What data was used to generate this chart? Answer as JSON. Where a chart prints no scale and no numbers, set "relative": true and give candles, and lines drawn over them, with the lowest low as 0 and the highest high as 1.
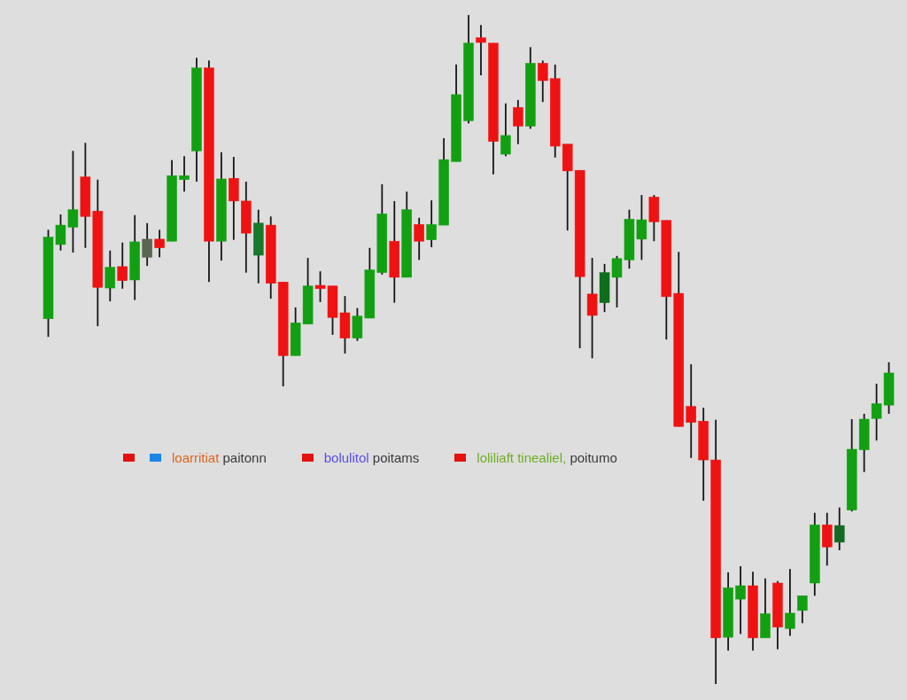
{
  "chart_data": {
    "type": "candlestick",
    "relative": true,
    "categories": [
      null,
      null,
      null,
      null,
      null,
      null,
      null,
      null,
      null,
      null,
      null,
      null,
      null,
      null,
      null,
      null,
      null,
      null,
      null,
      null,
      null,
      null,
      null,
      null,
      null,
      null,
      null,
      null,
      null,
      null,
      null,
      null,
      null,
      null,
      null,
      null,
      null,
      null,
      null,
      null,
      null,
      null,
      null,
      null,
      null,
      null,
      null,
      null,
      null,
      null,
      null,
      null,
      null,
      null,
      null,
      null,
      null,
      null,
      null,
      null,
      null,
      null,
      null,
      null,
      null,
      null,
      null,
      null,
      null
    ],
    "ohlc": [
      [
        0.546,
        0.679,
        0.519,
        0.668
      ],
      [
        0.657,
        0.702,
        0.648,
        0.686
      ],
      [
        0.683,
        0.797,
        0.645,
        0.709
      ],
      [
        0.758,
        0.809,
        0.652,
        0.699
      ],
      [
        0.707,
        0.754,
        0.535,
        0.593
      ],
      [
        0.592,
        0.648,
        0.572,
        0.623
      ],
      [
        0.624,
        0.66,
        0.591,
        0.603
      ],
      [
        0.604,
        0.701,
        0.574,
        0.661
      ],
      [
        0.638,
        0.689,
        0.625,
        0.665
      ],
      [
        0.665,
        0.679,
        0.638,
        0.652
      ],
      [
        0.662,
        0.783,
        0.662,
        0.76
      ],
      [
        0.754,
        0.789,
        0.736,
        0.76
      ],
      [
        0.797,
        0.936,
        0.751,
        0.921
      ],
      [
        0.921,
        0.932,
        0.601,
        0.662
      ],
      [
        0.662,
        0.795,
        0.633,
        0.755
      ],
      [
        0.756,
        0.788,
        0.664,
        0.722
      ],
      [
        0.722,
        0.751,
        0.615,
        0.674
      ],
      [
        0.641,
        0.709,
        0.599,
        0.689
      ],
      [
        0.686,
        0.699,
        0.576,
        0.599
      ],
      [
        0.601,
        0.601,
        0.445,
        0.491
      ],
      [
        0.491,
        0.563,
        0.491,
        0.54
      ],
      [
        0.538,
        0.637,
        0.538,
        0.595
      ],
      [
        0.596,
        0.617,
        0.571,
        0.591
      ],
      [
        0.595,
        0.595,
        0.522,
        0.548
      ],
      [
        0.555,
        0.58,
        0.494,
        0.517
      ],
      [
        0.517,
        0.562,
        0.513,
        0.55
      ],
      [
        0.547,
        0.652,
        0.547,
        0.619
      ],
      [
        0.615,
        0.747,
        0.612,
        0.703
      ],
      [
        0.662,
        0.722,
        0.57,
        0.608
      ],
      [
        0.608,
        0.736,
        0.608,
        0.709
      ],
      [
        0.687,
        0.697,
        0.634,
        0.662
      ],
      [
        0.664,
        0.723,
        0.653,
        0.687
      ],
      [
        0.686,
        0.816,
        0.686,
        0.784
      ],
      [
        0.781,
        0.926,
        0.781,
        0.881
      ],
      [
        0.842,
        1,
        0.838,
        0.958
      ],
      [
        0.966,
        0.985,
        0.91,
        0.959
      ],
      [
        0.958,
        0.958,
        0.762,
        0.811
      ],
      [
        0.792,
        0.868,
        0.789,
        0.82
      ],
      [
        0.862,
        0.873,
        0.807,
        0.834
      ],
      [
        0.834,
        0.952,
        0.83,
        0.928
      ],
      [
        0.928,
        0.932,
        0.87,
        0.902
      ],
      [
        0.905,
        0.926,
        0.787,
        0.804
      ],
      [
        0.807,
        0.807,
        0.678,
        0.767
      ],
      [
        0.768,
        0.768,
        0.502,
        0.609
      ],
      [
        0.583,
        0.637,
        0.487,
        0.551
      ],
      [
        0.57,
        0.628,
        0.556,
        0.615
      ],
      [
        0.608,
        0.64,
        0.563,
        0.636
      ],
      [
        0.634,
        0.709,
        0.621,
        0.695
      ],
      [
        0.665,
        0.731,
        0.634,
        0.694
      ],
      [
        0.728,
        0.731,
        0.662,
        0.691
      ],
      [
        0.693,
        0.693,
        0.515,
        0.579
      ],
      [
        0.584,
        0.646,
        0.385,
        0.385
      ],
      [
        0.415,
        0.478,
        0.338,
        0.391
      ],
      [
        0.393,
        0.413,
        0.274,
        0.335
      ],
      [
        0.335,
        0.395,
        0,
        0.069
      ],
      [
        0.07,
        0.167,
        0.05,
        0.144
      ],
      [
        0.127,
        0.176,
        0.075,
        0.147
      ],
      [
        0.147,
        0.168,
        0.05,
        0.069
      ],
      [
        0.069,
        0.158,
        0.069,
        0.105
      ],
      [
        0.151,
        0.154,
        0.052,
        0.085
      ],
      [
        0.083,
        0.172,
        0.072,
        0.106
      ],
      [
        0.11,
        0.132,
        0.091,
        0.132
      ],
      [
        0.151,
        0.256,
        0.132,
        0.238
      ],
      [
        0.238,
        0.256,
        0.177,
        0.205
      ],
      [
        0.212,
        0.264,
        0.2,
        0.237
      ],
      [
        0.26,
        0.396,
        0.258,
        0.351
      ],
      [
        0.35,
        0.404,
        0.317,
        0.396
      ],
      [
        0.397,
        0.449,
        0.364,
        0.419
      ],
      [
        0.417,
        0.481,
        0.404,
        0.465
      ]
    ],
    "colors": [
      "#12a012",
      "#12a012",
      "#12a012",
      "#f01212",
      "#f01212",
      "#12a012",
      "#f01212",
      "#12a012",
      "#5a6650",
      "#f01212",
      "#12a012",
      "#12a012",
      "#12a012",
      "#f01212",
      "#12a012",
      "#f01212",
      "#f01212",
      "#17792a",
      "#f01212",
      "#f01212",
      "#12a012",
      "#12a012",
      "#f01212",
      "#f01212",
      "#f01212",
      "#12a012",
      "#12a012",
      "#12a012",
      "#f01212",
      "#12a012",
      "#f01212",
      "#12a012",
      "#12a012",
      "#12a012",
      "#12a012",
      "#f01212",
      "#f01212",
      "#12a012",
      "#f01212",
      "#12a012",
      "#f01212",
      "#f01212",
      "#f01212",
      "#f01212",
      "#f01212",
      "#0f6e1c",
      "#12a012",
      "#12a012",
      "#12a012",
      "#f01212",
      "#f01212",
      "#f01212",
      "#f01212",
      "#f01212",
      "#f01212",
      "#12a012",
      "#12a012",
      "#f01212",
      "#12a012",
      "#f01212",
      "#12a012",
      "#12a012",
      "#12a012",
      "#f01212",
      "#146a24",
      "#12a012",
      "#12a012",
      "#12a012",
      "#12a012"
    ],
    "annotations": [
      "loarritiat paitonn",
      "bolulitol poitams",
      "loliliaft tinealiel, poitumo"
    ]
  }
}
